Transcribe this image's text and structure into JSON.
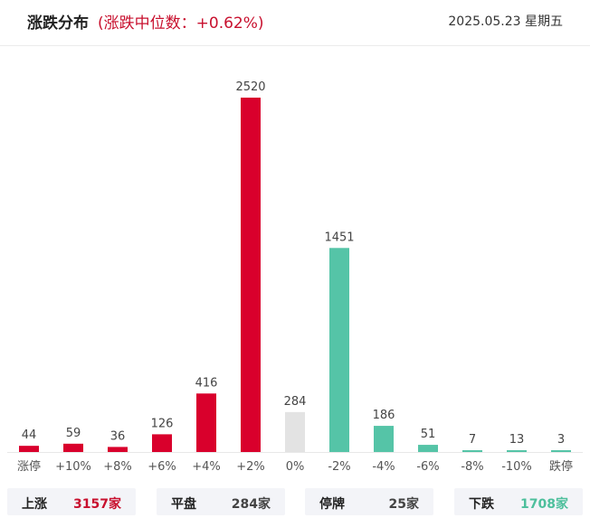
{
  "header": {
    "title": "涨跌分布",
    "median_text": "(涨跌中位数：+0.62%)",
    "date": "2025.05.23 星期五"
  },
  "colors": {
    "up": "#d9002c",
    "flat": "#e3e3e3",
    "down": "#55c4a7",
    "up_text": "#c8102e",
    "down_text": "#4dbf9c"
  },
  "chart_data": {
    "type": "bar",
    "categories": [
      "涨停",
      "+10%",
      "+8%",
      "+6%",
      "+4%",
      "+2%",
      "0%",
      "-2%",
      "-4%",
      "-6%",
      "-8%",
      "-10%",
      "跌停"
    ],
    "values": [
      44,
      59,
      36,
      126,
      416,
      2520,
      284,
      1451,
      186,
      51,
      7,
      13,
      3
    ],
    "bar_colors": [
      "up",
      "up",
      "up",
      "up",
      "up",
      "up",
      "flat",
      "down",
      "down",
      "down",
      "down",
      "down",
      "down"
    ],
    "title": "涨跌分布",
    "xlabel": "",
    "ylabel": "",
    "ylim": [
      0,
      2520
    ],
    "grid": false,
    "legend": "none"
  },
  "summary": [
    {
      "label": "上涨",
      "value": "3157家",
      "tone": "up"
    },
    {
      "label": "平盘",
      "value": "284家",
      "tone": "neutral"
    },
    {
      "label": "停牌",
      "value": "25家",
      "tone": "neutral"
    },
    {
      "label": "下跌",
      "value": "1708家",
      "tone": "down"
    }
  ]
}
